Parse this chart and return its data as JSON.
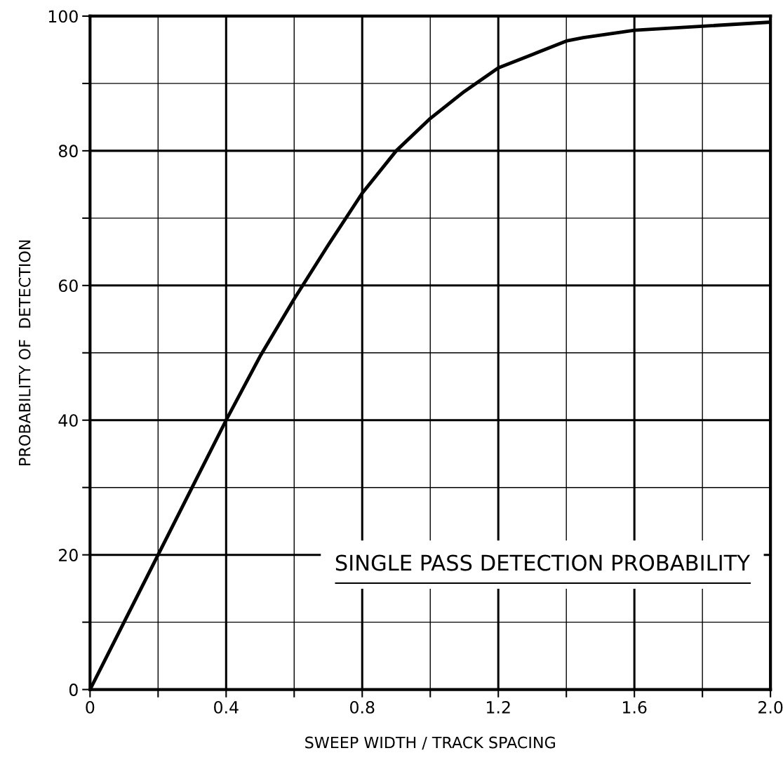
{
  "chart_data": {
    "type": "line",
    "xlabel": "SWEEP WIDTH / TRACK SPACING",
    "ylabel": "PROBABILITY OF  DETECTION",
    "annotations": [
      "SINGLE PASS DETECTION PROBABILITY"
    ],
    "x": [
      0,
      0.1,
      0.2,
      0.3,
      0.4,
      0.5,
      0.6,
      0.7,
      0.8,
      0.9,
      1.0,
      1.1,
      1.2,
      1.3,
      1.4,
      1.45,
      1.6,
      1.8,
      2.0
    ],
    "series": [
      {
        "color": "#000000",
        "values": [
          0,
          10,
          20,
          30,
          40,
          49.5,
          58,
          66,
          73.7,
          80,
          84.8,
          88.8,
          92.3,
          94.3,
          96.3,
          96.8,
          97.9,
          98.5,
          99.1
        ]
      }
    ],
    "xlim": [
      0,
      2.0
    ],
    "ylim": [
      0,
      100
    ],
    "xticks": [
      0,
      {
        "value": 0.2,
        "label": null
      },
      0.4,
      {
        "value": 0.6,
        "label": null
      },
      0.8,
      {
        "value": 1.0,
        "label": null
      },
      1.2,
      {
        "value": 1.4,
        "label": null
      },
      1.6,
      {
        "value": 1.8,
        "label": null
      },
      {
        "value": 2.0,
        "label": "2.0"
      }
    ],
    "yticks": [
      0,
      {
        "value": 10,
        "label": null
      },
      20,
      {
        "value": 30,
        "label": null
      },
      40,
      {
        "value": 50,
        "label": null
      },
      60,
      {
        "value": 70,
        "label": null
      },
      80,
      {
        "value": 90,
        "label": null
      },
      100
    ],
    "grid": true,
    "marker": "none",
    "line_style": "solid"
  }
}
